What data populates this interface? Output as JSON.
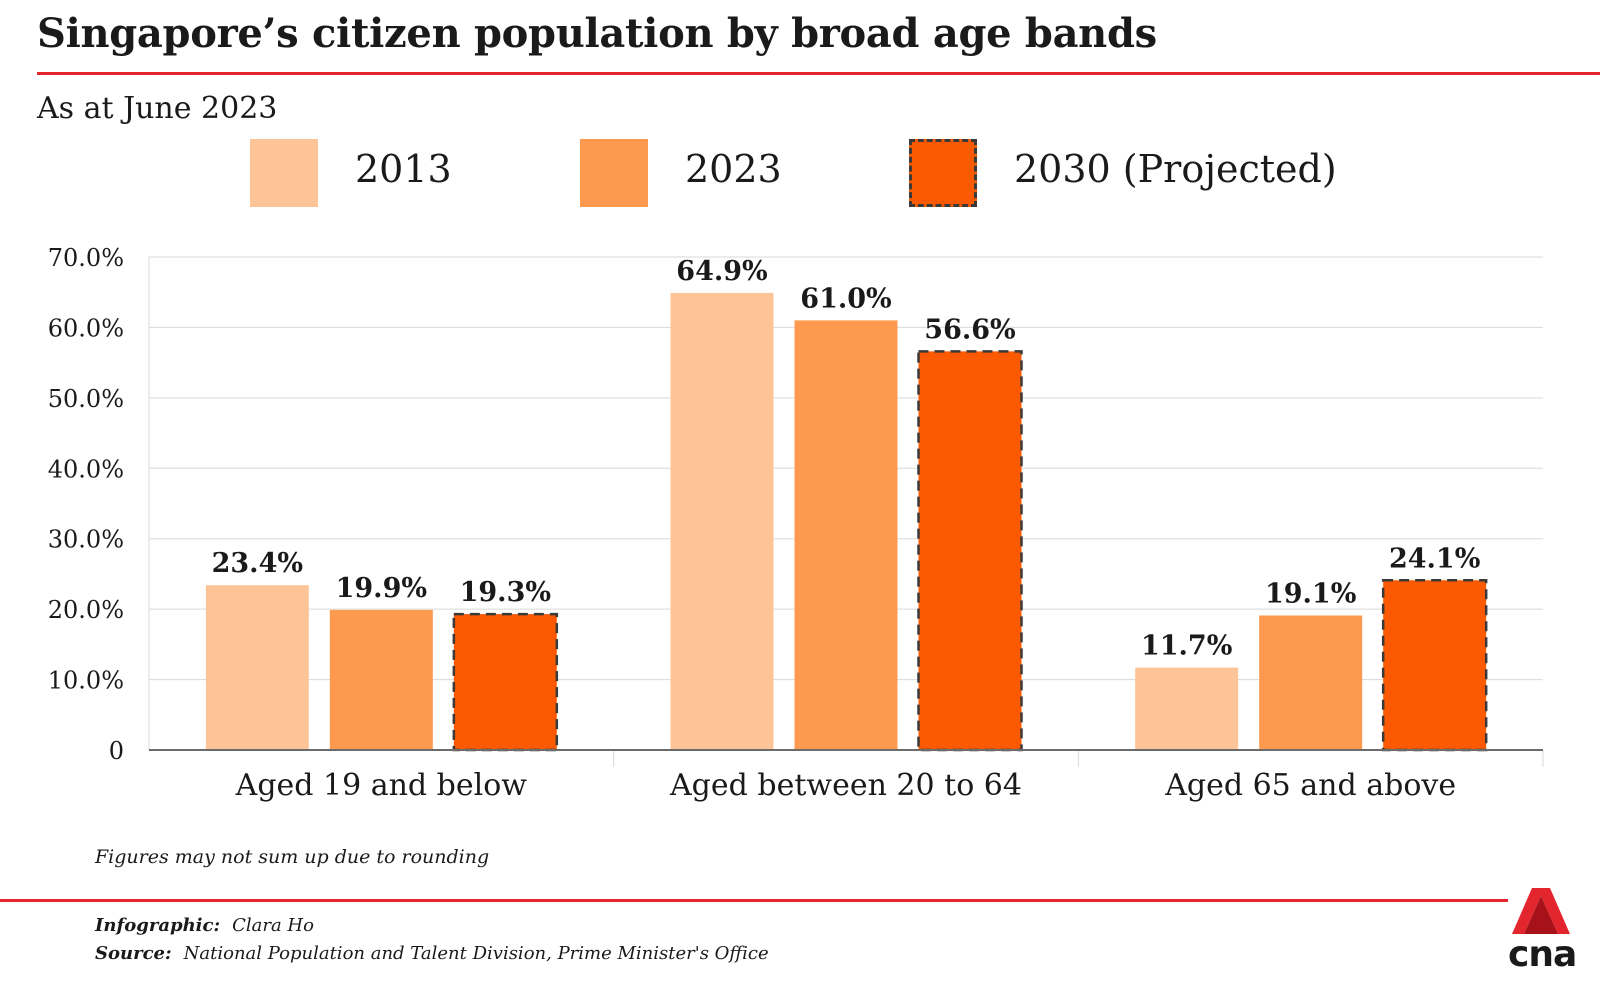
{
  "header": {
    "title": "Singapore’s citizen population by broad age bands",
    "subtitle": "As at June 2023"
  },
  "legend": [
    {
      "label": "2013",
      "color": "#fdc597",
      "dashed": false
    },
    {
      "label": "2023",
      "color": "#fd9a4f",
      "dashed": false
    },
    {
      "label": "2030 (Projected)",
      "color": "#fb5a02",
      "dashed": true
    }
  ],
  "chart_data": {
    "type": "bar",
    "title": "Singapore’s citizen population by broad age bands",
    "subtitle": "As at June 2023",
    "categories": [
      "Aged 19 and below",
      "Aged between 20 to 64",
      "Aged 65 and above"
    ],
    "series": [
      {
        "name": "2013",
        "values": [
          23.4,
          64.9,
          11.7
        ],
        "labels": [
          "23.4%",
          "64.9%",
          "11.7%"
        ],
        "color": "#fdc597"
      },
      {
        "name": "2023",
        "values": [
          19.9,
          61.0,
          19.1
        ],
        "labels": [
          "19.9%",
          "61.0%",
          "19.1%"
        ],
        "color": "#fd9a4f"
      },
      {
        "name": "2030 (Projected)",
        "values": [
          19.3,
          56.6,
          24.1
        ],
        "labels": [
          "19.3%",
          "56.6%",
          "24.1%"
        ],
        "color": "#fb5a02",
        "dashed": true
      }
    ],
    "yticks": [
      0,
      10,
      20,
      30,
      40,
      50,
      60,
      70
    ],
    "ytick_labels": [
      "0",
      "10.0%",
      "20.0%",
      "30.0%",
      "40.0%",
      "50.0%",
      "60.0%",
      "70.0%"
    ],
    "ylim": [
      0,
      70
    ],
    "xlabel": "",
    "ylabel": "",
    "grid": true,
    "legend_position": "top"
  },
  "footer": {
    "note": "Figures may not sum up due to rounding",
    "infographic_key": "Infographic:",
    "infographic_value": "Clara Ho",
    "source_key": "Source:",
    "source_value": "National Population and Talent Division, Prime Minister's Office",
    "logo_text": "cna"
  }
}
